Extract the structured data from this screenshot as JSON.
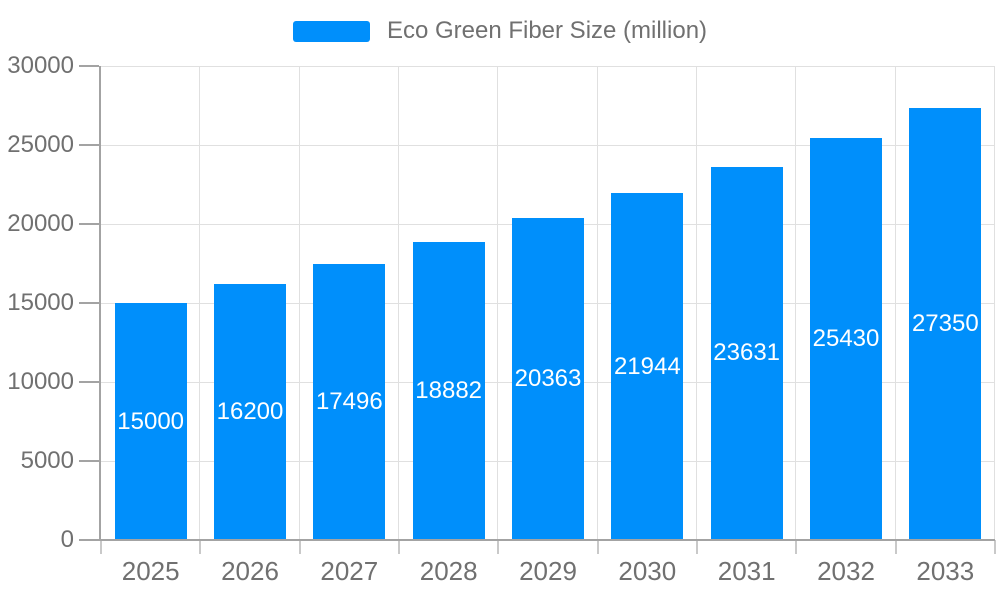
{
  "chart_data": {
    "type": "bar",
    "title": "",
    "series": [
      {
        "name": "Eco Green Fiber Size (million)",
        "values": [
          15000,
          16200,
          17496,
          18882,
          20363,
          21944,
          23631,
          25430,
          27350
        ]
      }
    ],
    "categories": [
      "2025",
      "2026",
      "2027",
      "2028",
      "2029",
      "2030",
      "2031",
      "2032",
      "2033"
    ],
    "data_labels": [
      "15000",
      "16200",
      "17496",
      "18882",
      "20363",
      "21944",
      "23631",
      "25430",
      "27350"
    ],
    "xlabel": "",
    "ylabel": "",
    "ylim": [
      0,
      30000
    ],
    "ytick_step": 5000,
    "yticks": [
      0,
      5000,
      10000,
      15000,
      20000,
      25000,
      30000
    ],
    "grid": true,
    "legend_position": "top",
    "legend_entries": [
      "Eco Green Fiber Size (million)"
    ]
  },
  "legend": {
    "label": "Eco Green Fiber Size (million)"
  },
  "colors": {
    "bar": "#008FFB",
    "data_label_text": "#ffffff",
    "axis_text": "#707070",
    "grid_line": "#e0e0e0",
    "axis_line": "#a3a3a3",
    "x_tick": "#c9c9c9",
    "background": "#ffffff"
  }
}
